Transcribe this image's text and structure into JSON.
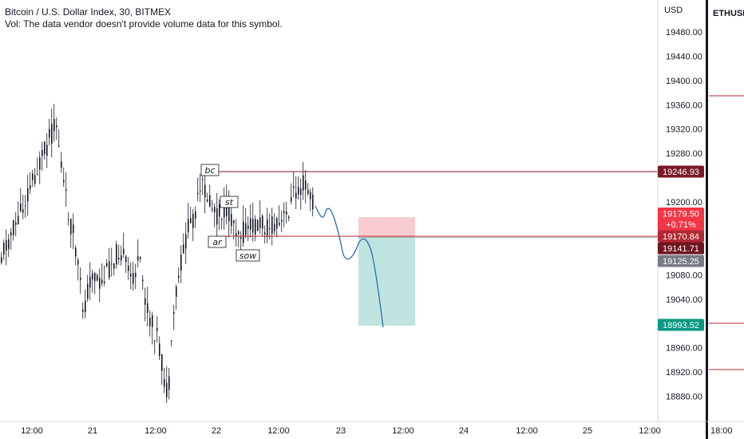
{
  "header": {
    "title": "Bitcoin / U.S. Dollar Index, 30, BITMEX",
    "volume_note": "Vol: The data vendor doesn't provide volume data for this symbol."
  },
  "price_axis": {
    "currency": "USD",
    "ticks": [
      "19480.00",
      "19440.00",
      "19400.00",
      "19360.00",
      "19320.00",
      "19280.00",
      "19200.00",
      "19080.00",
      "19040.00",
      "18960.00",
      "18920.00",
      "18880.00"
    ]
  },
  "time_axis": {
    "labels": [
      "12:00",
      "21",
      "12:00",
      "22",
      "12:00",
      "23",
      "12:00",
      "24",
      "12:00",
      "25",
      "12:00"
    ],
    "right_label": "18:00"
  },
  "side_panel": {
    "symbol": "ETHUSD"
  },
  "price_tags": [
    {
      "label": "19246.93",
      "value": 19246.93,
      "color": "#7a1a25"
    },
    {
      "label": "19179.50",
      "sub": "+0.71%",
      "value": 19179.5,
      "color": "#f23645"
    },
    {
      "label": "19170.84",
      "value": 19170.84,
      "color": "#b22833"
    },
    {
      "label": "19141.71",
      "value": 19141.71,
      "color": "#6e1520"
    },
    {
      "label": "19125.25",
      "value": 19125.25,
      "color": "#787b86"
    },
    {
      "label": "18993.52",
      "value": 18993.52,
      "color": "#089981"
    }
  ],
  "annotations": [
    {
      "label": "bc"
    },
    {
      "label": "st"
    },
    {
      "label": "ar"
    },
    {
      "label": "sow"
    }
  ],
  "position": {
    "entry": 19141.71,
    "stop": 19179.5,
    "target": 18993.52
  },
  "colors": {
    "candle": "#131722",
    "level_line": "#7a1a25",
    "projection": "#2962ff",
    "stop_zone": "#f7c6c9",
    "target_zone": "#b8e1dc"
  }
}
